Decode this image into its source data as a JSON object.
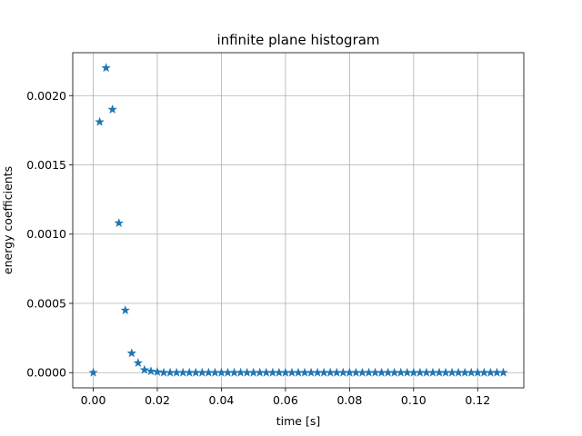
{
  "chart_data": {
    "type": "scatter",
    "title": "infinite plane histogram",
    "xlabel": "time [s]",
    "ylabel": "energy coefficients",
    "xlim": [
      -0.0064,
      0.1344
    ],
    "ylim": [
      -0.00011,
      0.00231
    ],
    "xticks": [
      0.0,
      0.02,
      0.04,
      0.06,
      0.08,
      0.1,
      0.12
    ],
    "xtick_labels": [
      "0.00",
      "0.02",
      "0.04",
      "0.06",
      "0.08",
      "0.10",
      "0.12"
    ],
    "yticks": [
      0.0,
      0.0005,
      0.001,
      0.0015,
      0.002
    ],
    "ytick_labels": [
      "0.0000",
      "0.0005",
      "0.0010",
      "0.0015",
      "0.0020"
    ],
    "grid": true,
    "marker": "star",
    "color": "#1f77b4",
    "series": [
      {
        "x": [
          0.0,
          0.002,
          0.004,
          0.006,
          0.008,
          0.01,
          0.012,
          0.014,
          0.016,
          0.018,
          0.02,
          0.022,
          0.024,
          0.026,
          0.028,
          0.03,
          0.032,
          0.034,
          0.036,
          0.038,
          0.04,
          0.042,
          0.044,
          0.046,
          0.048,
          0.05,
          0.052,
          0.054,
          0.056,
          0.058,
          0.06,
          0.062,
          0.064,
          0.066,
          0.068,
          0.07,
          0.072,
          0.074,
          0.076,
          0.078,
          0.08,
          0.082,
          0.084,
          0.086,
          0.088,
          0.09,
          0.092,
          0.094,
          0.096,
          0.098,
          0.1,
          0.102,
          0.104,
          0.106,
          0.108,
          0.11,
          0.112,
          0.114,
          0.116,
          0.118,
          0.12,
          0.122,
          0.124,
          0.126,
          0.128
        ],
        "y": [
          0.0,
          0.00181,
          0.0022,
          0.0019,
          0.00108,
          0.00045,
          0.00014,
          7e-05,
          2e-05,
          1e-05,
          5e-06,
          0,
          0,
          0,
          0,
          0,
          0,
          0,
          0,
          0,
          0,
          0,
          0,
          0,
          0,
          0,
          0,
          0,
          0,
          0,
          0,
          0,
          0,
          0,
          0,
          0,
          0,
          0,
          0,
          0,
          0,
          0,
          0,
          0,
          0,
          0,
          0,
          0,
          0,
          0,
          0,
          0,
          0,
          0,
          0,
          0,
          0,
          0,
          0,
          0,
          0,
          0,
          0,
          0,
          0
        ]
      }
    ]
  }
}
